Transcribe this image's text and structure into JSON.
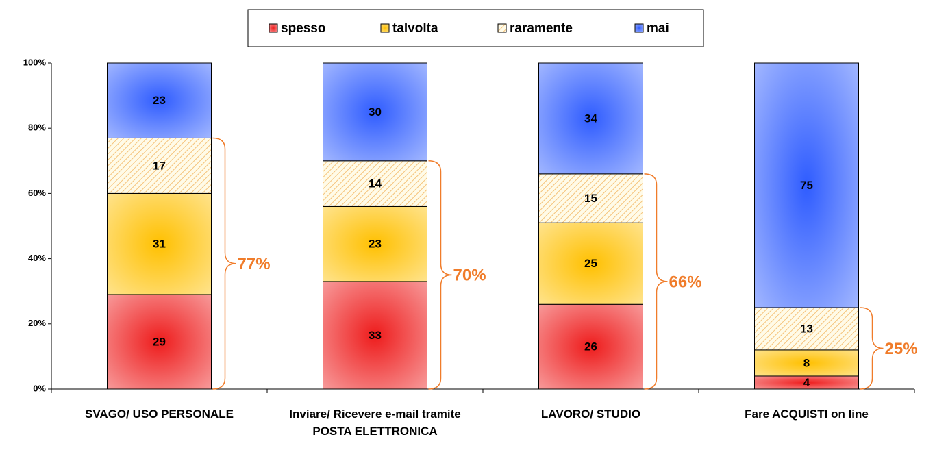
{
  "chart_data": {
    "type": "stacked_bar",
    "categories": [
      "SVAGO/ USO PERSONALE",
      "Inviare/ Ricevere e-mail tramite POSTA ELETTRONICA",
      "LAVORO/ STUDIO",
      "Fare ACQUISTI on line"
    ],
    "series": [
      {
        "name": "spesso",
        "color": "#ee1c1c",
        "values": [
          29,
          33,
          26,
          4
        ]
      },
      {
        "name": "talvolta",
        "color": "#ffc000",
        "values": [
          31,
          23,
          25,
          8
        ]
      },
      {
        "name": "raramente",
        "color": "#f5c37a",
        "hatch": true,
        "values": [
          17,
          14,
          15,
          13
        ]
      },
      {
        "name": "mai",
        "color": "#2f5cff",
        "values": [
          23,
          30,
          34,
          75
        ]
      }
    ],
    "annotations": [
      {
        "value": 77,
        "label": "77%"
      },
      {
        "value": 70,
        "label": "70%"
      },
      {
        "value": 66,
        "label": "66%"
      },
      {
        "value": 25,
        "label": "25%"
      }
    ],
    "annotation_color": "#f07c2a",
    "ylim": [
      0,
      100
    ],
    "yticks": [
      {
        "value": 0,
        "label": "0%"
      },
      {
        "value": 20,
        "label": "20%"
      },
      {
        "value": 40,
        "label": "40%"
      },
      {
        "value": 60,
        "label": "60%"
      },
      {
        "value": 80,
        "label": "80%"
      },
      {
        "value": 100,
        "label": "100%"
      }
    ],
    "legend": "top"
  }
}
